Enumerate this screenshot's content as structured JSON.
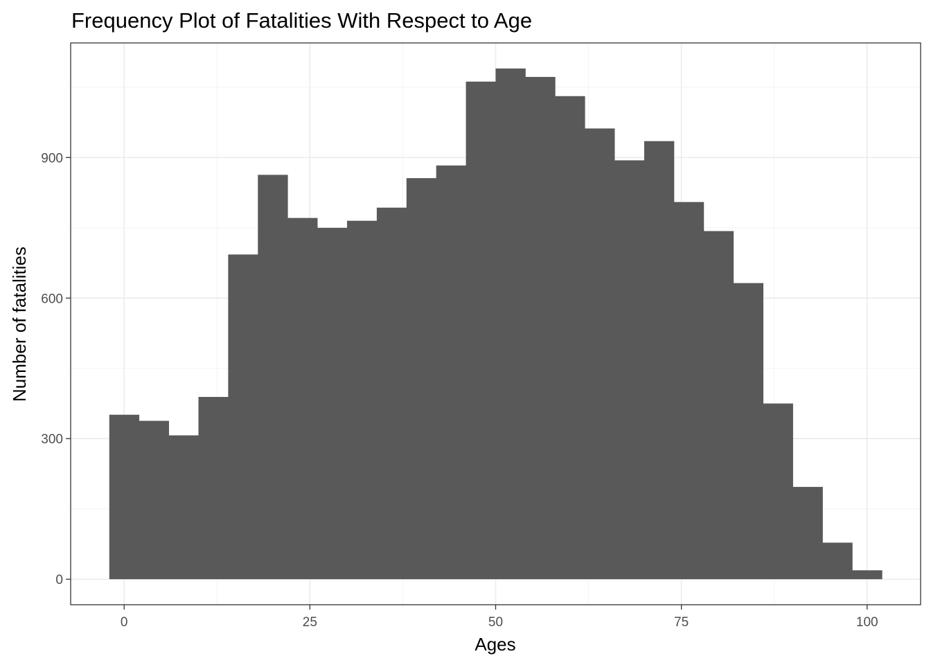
{
  "chart_data": {
    "type": "bar",
    "title": "Frequency Plot of Fatalities With Respect to Age",
    "xlabel": "Ages",
    "ylabel": "Number of fatalities",
    "bin_width": 4,
    "bins": [
      {
        "center": 0,
        "count": 351
      },
      {
        "center": 4,
        "count": 338
      },
      {
        "center": 8,
        "count": 307
      },
      {
        "center": 12,
        "count": 389
      },
      {
        "center": 16,
        "count": 693
      },
      {
        "center": 20,
        "count": 863
      },
      {
        "center": 24,
        "count": 771
      },
      {
        "center": 28,
        "count": 750
      },
      {
        "center": 32,
        "count": 765
      },
      {
        "center": 36,
        "count": 793
      },
      {
        "center": 40,
        "count": 856
      },
      {
        "center": 44,
        "count": 883
      },
      {
        "center": 48,
        "count": 1062
      },
      {
        "center": 52,
        "count": 1090
      },
      {
        "center": 56,
        "count": 1072
      },
      {
        "center": 60,
        "count": 1031
      },
      {
        "center": 64,
        "count": 962
      },
      {
        "center": 68,
        "count": 894
      },
      {
        "center": 72,
        "count": 935
      },
      {
        "center": 76,
        "count": 805
      },
      {
        "center": 80,
        "count": 743
      },
      {
        "center": 84,
        "count": 632
      },
      {
        "center": 88,
        "count": 375
      },
      {
        "center": 92,
        "count": 197
      },
      {
        "center": 96,
        "count": 78
      },
      {
        "center": 100,
        "count": 19
      }
    ],
    "xlim": [
      -7.2,
      107.2
    ],
    "ylim": [
      -54.5,
      1144.5
    ],
    "x_ticks": [
      0,
      25,
      50,
      75,
      100
    ],
    "y_ticks": [
      0,
      300,
      600,
      900
    ],
    "bar_color": "#595959",
    "grid": true,
    "legend": "none"
  }
}
